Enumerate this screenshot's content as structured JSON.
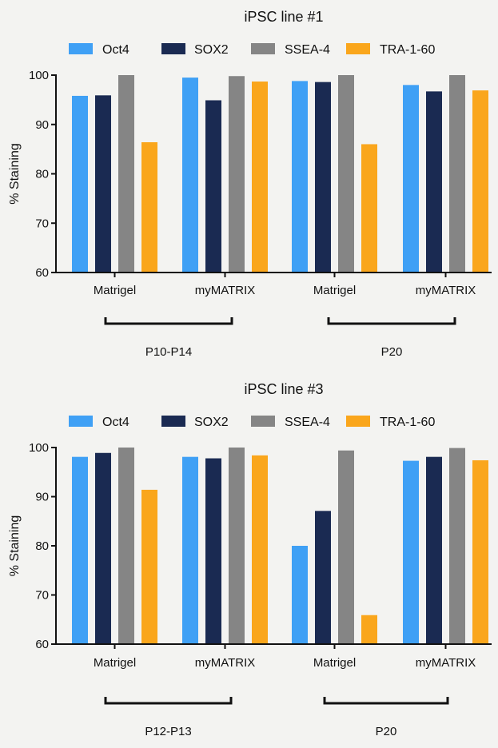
{
  "chart_data": [
    {
      "type": "bar",
      "title": "iPSC line #1",
      "ylabel": "% Staining",
      "ylim": [
        60,
        100
      ],
      "yticks": [
        60,
        70,
        80,
        90,
        100
      ],
      "legend_position": "top",
      "categories": [
        "Matrigel",
        "myMATRIX",
        "Matrigel",
        "myMATRIX"
      ],
      "groups": [
        {
          "label": "P10-P14",
          "categories": [
            0,
            1
          ]
        },
        {
          "label": "P20",
          "categories": [
            2,
            3
          ]
        }
      ],
      "series": [
        {
          "name": "Oct4",
          "color": "#3fa0f5",
          "values": [
            95.8,
            99.5,
            98.8,
            98.0
          ]
        },
        {
          "name": "SOX2",
          "color": "#1a2a52",
          "values": [
            95.9,
            94.9,
            98.6,
            96.7
          ]
        },
        {
          "name": "SSEA-4",
          "color": "#858585",
          "values": [
            100.0,
            99.8,
            100.0,
            100.0
          ]
        },
        {
          "name": "TRA-1-60",
          "color": "#faa61c",
          "values": [
            86.4,
            98.7,
            86.0,
            96.9
          ]
        }
      ]
    },
    {
      "type": "bar",
      "title": "iPSC line #3",
      "ylabel": "% Staining",
      "ylim": [
        60,
        100
      ],
      "yticks": [
        60,
        70,
        80,
        90,
        100
      ],
      "legend_position": "top",
      "categories": [
        "Matrigel",
        "myMATRIX",
        "Matrigel",
        "myMATRIX"
      ],
      "groups": [
        {
          "label": "P12-P13",
          "categories": [
            0,
            1
          ]
        },
        {
          "label": "P20",
          "categories": [
            2,
            3
          ]
        }
      ],
      "series": [
        {
          "name": "Oct4",
          "color": "#3fa0f5",
          "values": [
            98.1,
            98.1,
            80.0,
            97.3
          ]
        },
        {
          "name": "SOX2",
          "color": "#1a2a52",
          "values": [
            98.9,
            97.8,
            87.1,
            98.1
          ]
        },
        {
          "name": "SSEA-4",
          "color": "#858585",
          "values": [
            100.0,
            100.0,
            99.4,
            99.9
          ]
        },
        {
          "name": "TRA-1-60",
          "color": "#faa61c",
          "values": [
            91.4,
            98.4,
            65.9,
            97.4
          ]
        }
      ]
    }
  ]
}
